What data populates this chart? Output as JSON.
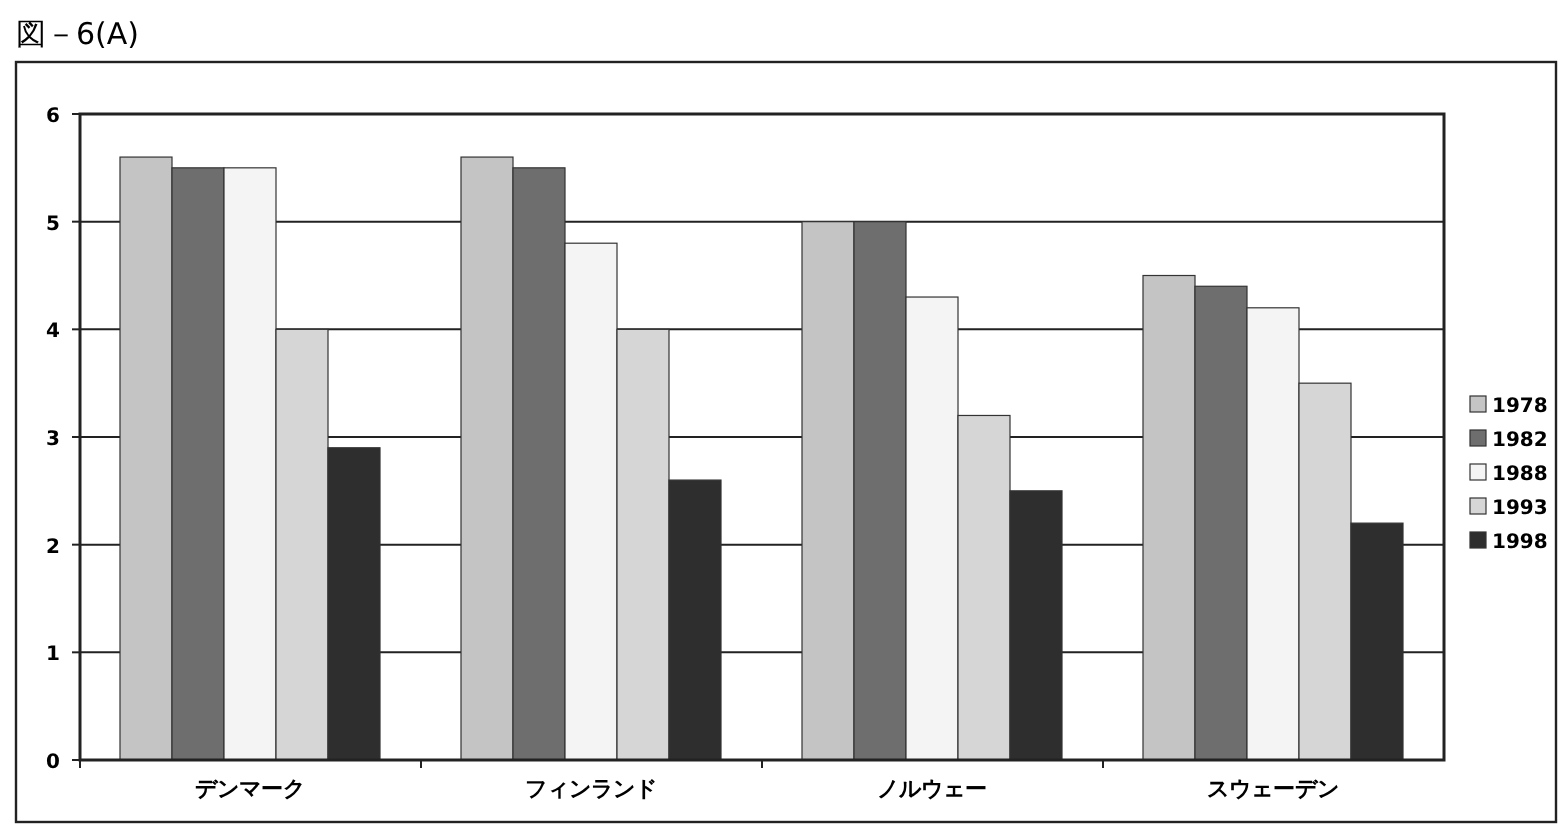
{
  "chart_data": {
    "type": "bar",
    "title": "図－6(A)",
    "categories": [
      "デンマーク",
      "フィンランド",
      "ノルウェー",
      "スウェーデン"
    ],
    "series": [
      {
        "name": "1978",
        "color": "#c4c4c4",
        "values": [
          5.6,
          5.6,
          5.0,
          4.5
        ]
      },
      {
        "name": "1982",
        "color": "#6e6e6e",
        "values": [
          5.5,
          5.5,
          5.0,
          4.4
        ]
      },
      {
        "name": "1988",
        "color": "#f4f4f4",
        "values": [
          5.5,
          4.8,
          4.3,
          4.2
        ]
      },
      {
        "name": "1993",
        "color": "#d6d6d6",
        "values": [
          4.0,
          4.0,
          3.2,
          3.5
        ]
      },
      {
        "name": "1998",
        "color": "#2e2e2e",
        "values": [
          2.9,
          2.6,
          2.5,
          2.2
        ]
      }
    ],
    "ylim": [
      0,
      6
    ],
    "yticks": [
      0,
      1,
      2,
      3,
      4,
      5,
      6
    ],
    "grid": "y",
    "legend": "right"
  }
}
